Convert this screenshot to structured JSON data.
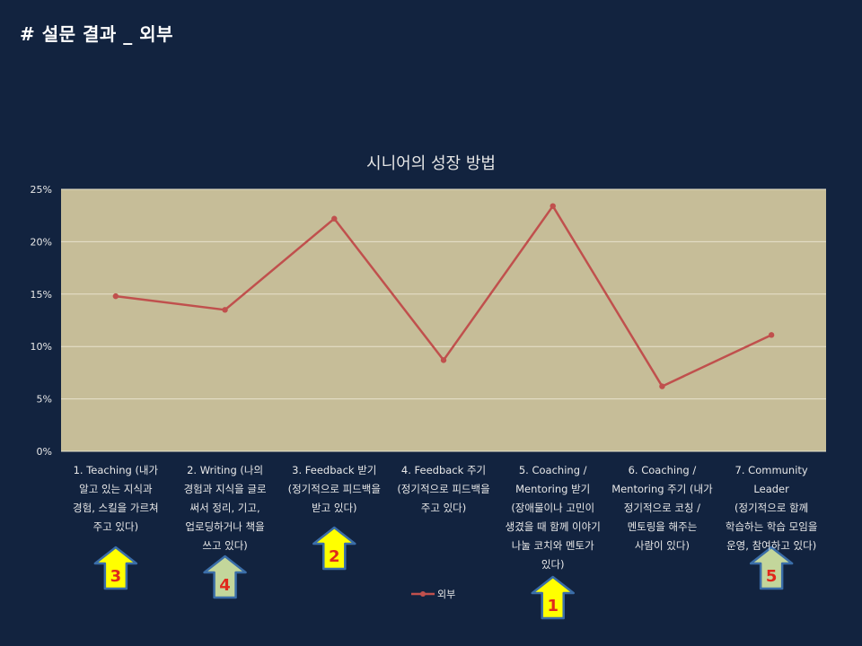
{
  "page": {
    "title": "# 설문 결과 _ 외부"
  },
  "chart_data": {
    "type": "line",
    "title": "시니어의 성장 방법",
    "xlabel": "",
    "ylabel": "",
    "ylim": [
      0,
      25
    ],
    "yticks": [
      "0%",
      "5%",
      "10%",
      "15%",
      "20%",
      "25%"
    ],
    "grid": true,
    "legend_position": "bottom",
    "plot_background": "#c6bd98",
    "categories": [
      [
        "1. Teaching (내가",
        "알고 있는 지식과",
        "경험, 스킬을 가르쳐",
        "주고 있다)"
      ],
      [
        "2. Writing (나의",
        "경험과 지식을 글로",
        "써서 정리, 기고,",
        "업로딩하거나 책을",
        "쓰고 있다)"
      ],
      [
        "3. Feedback 받기",
        "(정기적으로 피드백을",
        "받고 있다)"
      ],
      [
        "4. Feedback 주기",
        "(정기적으로 피드백을",
        "주고 있다)"
      ],
      [
        "5. Coaching /",
        "Mentoring 받기",
        "(장애물이나 고민이",
        "생겼을 때 함께 이야기",
        "나눌 코치와 멘토가",
        "있다)"
      ],
      [
        "6. Coaching /",
        "Mentoring 주기 (내가",
        "정기적으로 코칭 /",
        "멘토링을 해주는",
        "사람이 있다)"
      ],
      [
        "7. Community Leader",
        "(정기적으로 함께",
        "학습하는 학습 모임을",
        "운영, 참여하고 있다)"
      ]
    ],
    "series": [
      {
        "name": "외부",
        "color": "#c0504d",
        "values": [
          14.8,
          13.5,
          22.2,
          8.7,
          23.4,
          6.2,
          11.1
        ]
      }
    ]
  },
  "annotations": {
    "rank_arrows": [
      {
        "category_index": 0,
        "label": "3",
        "fill": "#ffff00"
      },
      {
        "category_index": 1,
        "label": "4",
        "fill": "#c3d69b"
      },
      {
        "category_index": 2,
        "label": "2",
        "fill": "#ffff00"
      },
      {
        "category_index": 4,
        "label": "1",
        "fill": "#ffff00"
      },
      {
        "category_index": 6,
        "label": "5",
        "fill": "#c3d69b"
      }
    ]
  }
}
